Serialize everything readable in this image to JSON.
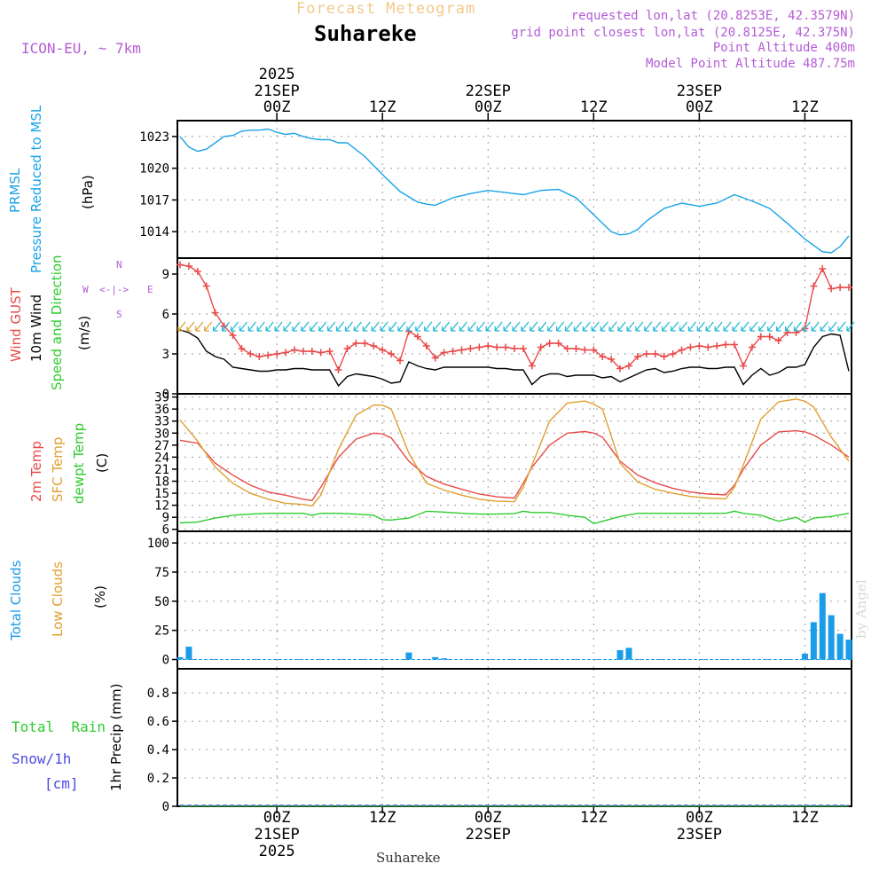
{
  "header": {
    "title": "Forecast Meteogram",
    "location": "Suhareke",
    "model": "ICON-EU, ~ 7km",
    "requested": "requested lon,lat (20.8253E, 42.3579N)",
    "grid_point": "grid point closest lon,lat (20.8125E, 42.375N)",
    "point_altitude": "Point Altitude 400m",
    "model_altitude": "Model Point Altitude 487.75m",
    "footer_location": "Suhareke",
    "credit": "by Angel"
  },
  "time_axis": {
    "top_labels": [
      {
        "line1": "2025",
        "line2": "21SEP",
        "line3": "00Z",
        "hour": 0
      },
      {
        "line1": "",
        "line2": "",
        "line3": "12Z",
        "hour": 12
      },
      {
        "line1": "",
        "line2": "22SEP",
        "line3": "00Z",
        "hour": 24
      },
      {
        "line1": "",
        "line2": "",
        "line3": "12Z",
        "hour": 36
      },
      {
        "line1": "",
        "line2": "23SEP",
        "line3": "00Z",
        "hour": 48
      },
      {
        "line1": "",
        "line2": "",
        "line3": "12Z",
        "hour": 60
      }
    ],
    "bottom_labels": [
      {
        "line1": "00Z",
        "line2": "21SEP",
        "line3": "2025",
        "hour": 0
      },
      {
        "line1": "12Z",
        "line2": "",
        "line3": "",
        "hour": 12
      },
      {
        "line1": "00Z",
        "line2": "22SEP",
        "line3": "",
        "hour": 24
      },
      {
        "line1": "12Z",
        "line2": "",
        "line3": "",
        "hour": 36
      },
      {
        "line1": "00Z",
        "line2": "23SEP",
        "line3": "",
        "hour": 48
      },
      {
        "line1": "12Z",
        "line2": "",
        "line3": "",
        "hour": 60
      }
    ],
    "xlim_hours": [
      -11.3,
      65.3
    ]
  },
  "panels": {
    "pressure": {
      "label1": "PRMSL",
      "label2": "Pressure Reduced to MSL",
      "unit": "(hPa)"
    },
    "wind": {
      "label1": "Wind GUST",
      "label2": "10m Wind",
      "label3": "Speed and Direction",
      "unit": "(m/s)",
      "compass_n": "N",
      "compass_s": "S",
      "compass_w": "W",
      "compass_e": "E",
      "compass_row": "<-|->"
    },
    "temp": {
      "label1": "2m Temp",
      "label2": "SFC Temp",
      "label3": "dewpt Temp",
      "unit": "(C)"
    },
    "clouds": {
      "label1": "Total Clouds",
      "label2": "Low Clouds",
      "unit": "(%)"
    },
    "precip": {
      "label1": "Total",
      "label1b": "Rain",
      "label2": "Snow/1h",
      "label3": "[cm]",
      "unit": "1hr Precip (mm)"
    }
  },
  "colors": {
    "pressure": "#1aa3e8",
    "gust": "#e84a4a",
    "wind": "#000000",
    "temp2m": "#e84a4a",
    "sfc": "#e0a030",
    "dew": "#2ecc2e",
    "clouds": "#1a9ce8",
    "rain": "#2ecc2e",
    "snow": "#4a4ae8",
    "barb": "#22b8d8"
  },
  "chart_data": [
    {
      "type": "line",
      "title": "PRMSL Pressure Reduced to MSL",
      "ylabel": "hPa",
      "ylim": [
        1011.5,
        1024.5
      ],
      "yticks": [
        1014,
        1017,
        1020,
        1023
      ],
      "x": [
        -11,
        -10,
        -9,
        -8,
        -7,
        -6,
        -5,
        -4,
        -3,
        -2,
        -1,
        0,
        1,
        2,
        3,
        4,
        5,
        6,
        7,
        8,
        10,
        12,
        14,
        16,
        17,
        18,
        20,
        22,
        24,
        26,
        28,
        30,
        32,
        34,
        36,
        38,
        39,
        40,
        41,
        42,
        44,
        46,
        48,
        50,
        52,
        54,
        56,
        58,
        60,
        62,
        63,
        64,
        65
      ],
      "series": [
        {
          "name": "PRMSL",
          "values": [
            1023.0,
            1022.0,
            1021.6,
            1021.8,
            1022.4,
            1023.0,
            1023.1,
            1023.5,
            1023.6,
            1023.6,
            1023.7,
            1023.4,
            1023.2,
            1023.3,
            1023.0,
            1022.8,
            1022.7,
            1022.7,
            1022.4,
            1022.4,
            1021.1,
            1019.4,
            1017.8,
            1016.8,
            1016.6,
            1016.5,
            1017.2,
            1017.6,
            1017.9,
            1017.7,
            1017.5,
            1017.9,
            1018.0,
            1017.2,
            1015.6,
            1014.0,
            1013.7,
            1013.8,
            1014.2,
            1015.0,
            1016.2,
            1016.7,
            1016.4,
            1016.7,
            1017.5,
            1016.9,
            1016.2,
            1014.8,
            1013.3,
            1012.1,
            1012.0,
            1012.6,
            1013.6
          ]
        }
      ]
    },
    {
      "type": "line",
      "title": "Wind GUST / 10m Wind Speed",
      "ylabel": "m/s",
      "ylim": [
        0,
        10.2
      ],
      "yticks": [
        0,
        3,
        6,
        9
      ],
      "x": [
        -11,
        -10,
        -9,
        -8,
        -7,
        -6,
        -5,
        -4,
        -3,
        -2,
        -1,
        0,
        1,
        2,
        3,
        4,
        5,
        6,
        7,
        8,
        9,
        10,
        11,
        12,
        13,
        14,
        15,
        16,
        17,
        18,
        19,
        20,
        21,
        22,
        23,
        24,
        25,
        26,
        27,
        28,
        29,
        30,
        31,
        32,
        33,
        34,
        35,
        36,
        37,
        38,
        39,
        40,
        41,
        42,
        43,
        44,
        45,
        46,
        47,
        48,
        49,
        50,
        51,
        52,
        53,
        54,
        55,
        56,
        57,
        58,
        59,
        60,
        61,
        62,
        63,
        64,
        65
      ],
      "series": [
        {
          "name": "Wind GUST",
          "values": [
            9.7,
            9.6,
            9.2,
            8.1,
            6.1,
            5.1,
            4.4,
            3.4,
            3.0,
            2.8,
            2.9,
            3.0,
            3.1,
            3.3,
            3.2,
            3.2,
            3.1,
            3.2,
            1.8,
            3.4,
            3.8,
            3.8,
            3.6,
            3.3,
            3.0,
            2.5,
            4.7,
            4.3,
            3.6,
            2.7,
            3.1,
            3.2,
            3.3,
            3.4,
            3.5,
            3.6,
            3.5,
            3.5,
            3.4,
            3.4,
            2.1,
            3.5,
            3.8,
            3.8,
            3.4,
            3.4,
            3.3,
            3.3,
            2.8,
            2.6,
            1.9,
            2.1,
            2.8,
            3.0,
            3.0,
            2.8,
            3.0,
            3.3,
            3.5,
            3.6,
            3.5,
            3.6,
            3.7,
            3.7,
            2.1,
            3.5,
            4.3,
            4.3,
            4.0,
            4.6,
            4.6,
            4.9,
            8.1,
            9.4,
            7.9,
            8.0,
            8.0
          ]
        },
        {
          "name": "10m Wind",
          "values": [
            4.8,
            4.6,
            4.2,
            3.2,
            2.8,
            2.6,
            2.0,
            1.9,
            1.8,
            1.7,
            1.7,
            1.8,
            1.8,
            1.9,
            1.9,
            1.8,
            1.8,
            1.8,
            0.6,
            1.3,
            1.5,
            1.4,
            1.3,
            1.1,
            0.8,
            0.9,
            2.4,
            2.1,
            1.9,
            1.8,
            2.0,
            2.0,
            2.0,
            2.0,
            2.0,
            2.0,
            1.9,
            1.9,
            1.8,
            1.8,
            0.7,
            1.3,
            1.5,
            1.5,
            1.3,
            1.4,
            1.4,
            1.4,
            1.2,
            1.3,
            0.9,
            1.2,
            1.5,
            1.8,
            1.9,
            1.6,
            1.7,
            1.9,
            2.0,
            2.0,
            1.9,
            1.9,
            2.0,
            2.0,
            0.7,
            1.4,
            1.9,
            1.4,
            1.6,
            2.0,
            2.0,
            2.2,
            3.5,
            4.3,
            4.5,
            4.4,
            1.7
          ]
        }
      ]
    },
    {
      "type": "line",
      "title": "2m Temp / SFC Temp / dewpt Temp",
      "ylabel": "C",
      "ylim": [
        5.5,
        39.8
      ],
      "yticks": [
        6,
        9,
        12,
        15,
        18,
        21,
        24,
        27,
        30,
        33,
        36,
        39
      ],
      "x": [
        -11,
        -9,
        -7,
        -5,
        -3,
        -1,
        1,
        3,
        4,
        5,
        7,
        9,
        11,
        12,
        13,
        15,
        17,
        19,
        21,
        23,
        25,
        27,
        28,
        29,
        31,
        33,
        35,
        36,
        37,
        39,
        41,
        43,
        45,
        47,
        49,
        51,
        52,
        53,
        55,
        57,
        59,
        60,
        61,
        63,
        65
      ],
      "series": [
        {
          "name": "2m Temp",
          "values": [
            28.2,
            27.5,
            22.5,
            19.5,
            17.0,
            15.3,
            14.5,
            13.5,
            13.2,
            16.5,
            24.0,
            28.5,
            30.0,
            29.8,
            28.8,
            23.0,
            19.2,
            17.3,
            16.0,
            14.8,
            14.1,
            13.8,
            17.5,
            21.5,
            27.0,
            30.0,
            30.4,
            30.0,
            29.0,
            23.0,
            19.5,
            17.6,
            16.2,
            15.3,
            14.8,
            14.6,
            17.0,
            21.0,
            27.0,
            30.3,
            30.6,
            30.3,
            29.5,
            27.0,
            24.0
          ]
        },
        {
          "name": "SFC Temp",
          "values": [
            33.3,
            28.0,
            21.5,
            17.5,
            15.0,
            13.5,
            12.5,
            12.2,
            11.8,
            14.5,
            26.0,
            34.5,
            37.0,
            37.0,
            36.0,
            25.0,
            17.5,
            15.8,
            14.5,
            13.5,
            13.0,
            12.9,
            16.5,
            22.0,
            33.0,
            37.5,
            38.0,
            37.2,
            36.0,
            22.5,
            17.8,
            16.0,
            15.0,
            14.2,
            13.8,
            13.6,
            16.5,
            22.0,
            33.5,
            37.8,
            38.5,
            38.0,
            36.5,
            29.0,
            23.0
          ]
        },
        {
          "name": "dewpt Temp",
          "values": [
            7.6,
            7.8,
            8.8,
            9.5,
            9.8,
            10.0,
            10.0,
            10.0,
            9.5,
            10.0,
            10.0,
            9.8,
            9.5,
            8.4,
            8.3,
            8.8,
            10.5,
            10.3,
            10.0,
            9.8,
            9.8,
            9.9,
            10.5,
            10.2,
            10.2,
            9.5,
            9.0,
            7.4,
            8.0,
            9.2,
            10.0,
            10.0,
            10.0,
            10.0,
            10.0,
            10.0,
            10.5,
            10.0,
            9.5,
            8.0,
            9.0,
            7.8,
            8.8,
            9.2,
            10.0
          ]
        }
      ]
    },
    {
      "type": "bar",
      "title": "Total Clouds / Low Clouds",
      "ylabel": "%",
      "ylim": [
        -8,
        110
      ],
      "yticks": [
        0,
        25,
        50,
        75,
        100
      ],
      "x": [
        -11,
        -10,
        15,
        18,
        19,
        39,
        40,
        60,
        61,
        62,
        63,
        64,
        65
      ],
      "series": [
        {
          "name": "Total Clouds",
          "values": [
            2,
            11,
            6,
            2,
            1,
            8,
            10,
            5,
            32,
            57,
            38,
            22,
            17
          ]
        }
      ]
    },
    {
      "type": "line",
      "title": "1hr Precip",
      "ylabel": "1hr Precip (mm)",
      "ylim": [
        0,
        0.97
      ],
      "yticks": [
        0,
        0.2,
        0.4,
        0.6,
        0.8
      ],
      "ytick_labels": [
        "0",
        "0.2",
        "0.4",
        "0.6",
        "0.8"
      ],
      "x": [
        -11,
        65
      ],
      "series": [
        {
          "name": "Total Rain",
          "values": [
            0,
            0
          ]
        },
        {
          "name": "Snow/1h",
          "values": [
            0,
            0
          ]
        }
      ]
    }
  ]
}
